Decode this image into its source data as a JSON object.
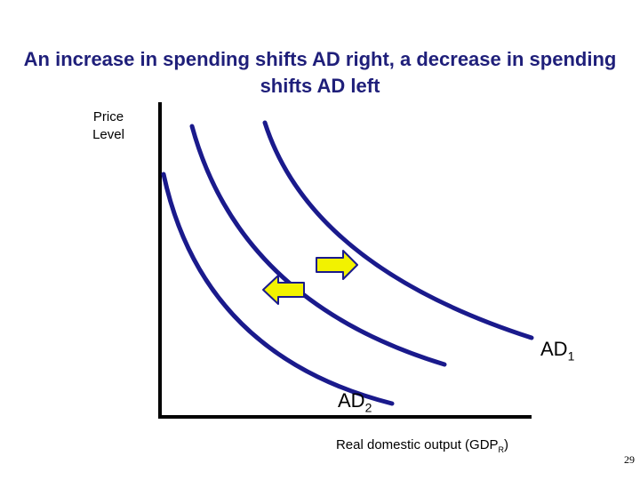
{
  "title": "An increase in spending shifts AD right, a decrease in spending shifts AD left",
  "axes": {
    "y_label_line1": "Price",
    "y_label_line2": "Level",
    "x_label_main": "Real domestic output (GDP",
    "x_label_sub": "R",
    "x_label_close": ")"
  },
  "curves": [
    {
      "label": "AD",
      "subscript": "1"
    },
    {
      "label": "AD",
      "subscript": "2"
    }
  ],
  "arrows": [
    {
      "direction": "right",
      "color": "#f2f200"
    },
    {
      "direction": "left",
      "color": "#f2f200"
    }
  ],
  "colors": {
    "curve": "#1a1a8c",
    "axis": "#000000",
    "arrow_fill": "#f2f200",
    "arrow_outline": "#1a1a8c",
    "title": "#1f1f7a"
  },
  "page_number": "29"
}
